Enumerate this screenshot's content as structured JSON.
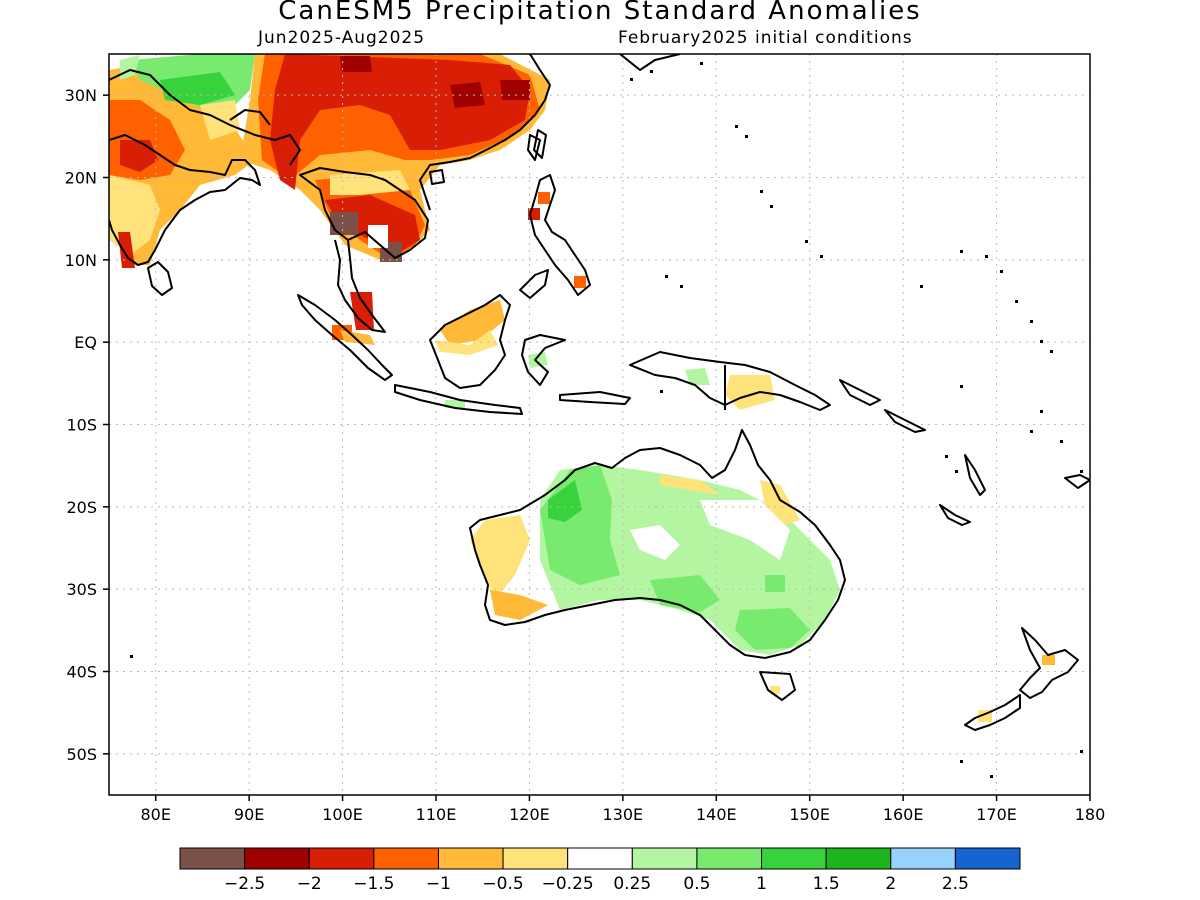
{
  "title": "CanESM5 Precipitation Standard Anomalies",
  "subtitle_left": "Jun2025-Aug2025",
  "subtitle_right": "February2025 initial conditions",
  "map": {
    "lon_range": [
      75,
      180
    ],
    "lat_range": [
      -55,
      35
    ],
    "lat_ticks": [
      {
        "lat": 30,
        "label": "30N"
      },
      {
        "lat": 20,
        "label": "20N"
      },
      {
        "lat": 10,
        "label": "10N"
      },
      {
        "lat": 0,
        "label": "EQ"
      },
      {
        "lat": -10,
        "label": "10S"
      },
      {
        "lat": -20,
        "label": "20S"
      },
      {
        "lat": -30,
        "label": "30S"
      },
      {
        "lat": -40,
        "label": "40S"
      },
      {
        "lat": -50,
        "label": "50S"
      }
    ],
    "lon_ticks": [
      {
        "lon": 80,
        "label": "80E"
      },
      {
        "lon": 90,
        "label": "90E"
      },
      {
        "lon": 100,
        "label": "100E"
      },
      {
        "lon": 110,
        "label": "110E"
      },
      {
        "lon": 120,
        "label": "120E"
      },
      {
        "lon": 130,
        "label": "130E"
      },
      {
        "lon": 140,
        "label": "140E"
      },
      {
        "lon": 150,
        "label": "150E"
      },
      {
        "lon": 160,
        "label": "160E"
      },
      {
        "lon": 170,
        "label": "170E"
      },
      {
        "lon": 180,
        "label": "180"
      }
    ],
    "grid": true
  },
  "colorbar": {
    "colors": [
      "#7a5048",
      "#a00000",
      "#d81e05",
      "#ff6000",
      "#ffb936",
      "#ffe37a",
      "#ffffff",
      "#b4f5a2",
      "#78eb6e",
      "#37d23c",
      "#1eb41e",
      "#96d2fa",
      "#1464d2"
    ],
    "labels": [
      "-2.5",
      "-2",
      "-1.5",
      "-1",
      "-0.5",
      "-0.25",
      "0.25",
      "0.5",
      "1",
      "1.5",
      "2",
      "2.5"
    ]
  }
}
